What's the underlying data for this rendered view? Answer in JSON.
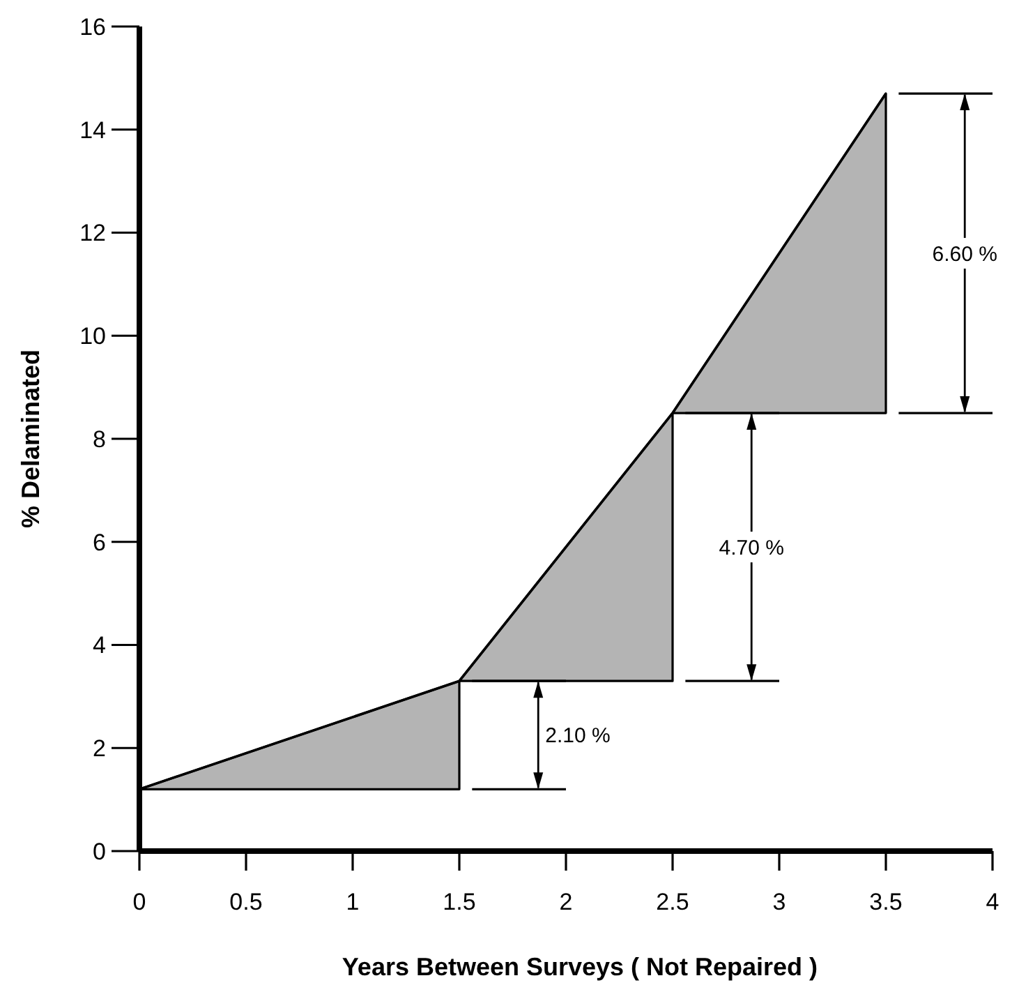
{
  "chart_data": {
    "type": "line",
    "xlabel": "Years Between Surveys ( Not Repaired )",
    "ylabel": "% Delaminated",
    "xlim": [
      0,
      4
    ],
    "xticks": [
      0,
      0.5,
      1,
      1.5,
      2,
      2.5,
      3,
      3.5,
      4
    ],
    "ylim": [
      0,
      16
    ],
    "yticks": [
      0,
      2,
      4,
      6,
      8,
      10,
      12,
      14,
      16
    ],
    "marker": "none",
    "series": [
      {
        "color": "#000000",
        "x": [
          0,
          1.5,
          1.5,
          2.5,
          2.5,
          3.5
        ],
        "values": [
          1.2,
          3.3,
          3.3,
          8.5,
          8.5,
          14.7
        ],
        "lower": [
          1.2,
          1.2,
          3.3,
          3.3,
          8.5,
          8.5
        ],
        "upper": [
          1.2,
          3.3,
          3.3,
          8.5,
          8.5,
          14.7
        ]
      }
    ],
    "annotations": [
      "2.10 %",
      "4.70 %",
      "6.60 %"
    ]
  }
}
